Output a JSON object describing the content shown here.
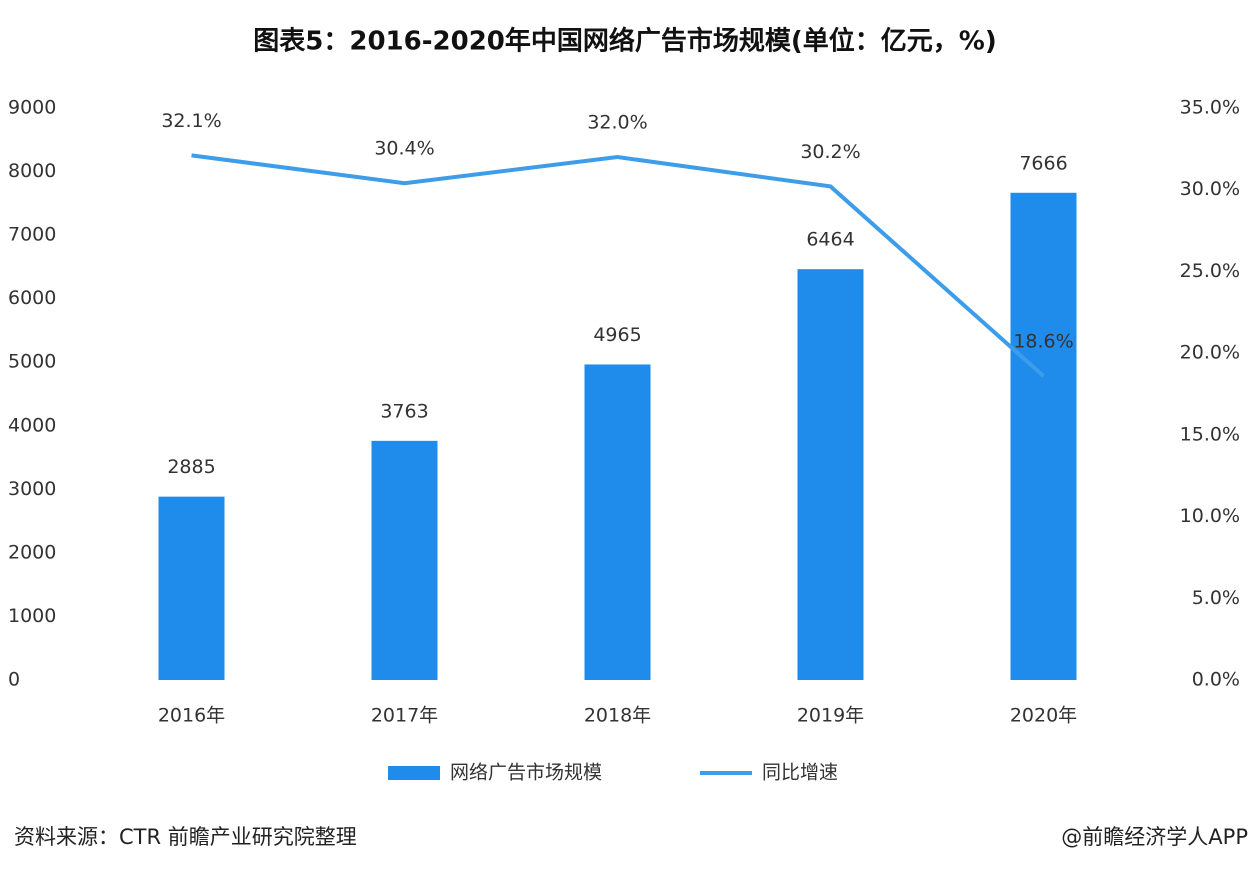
{
  "chart_data": {
    "type": "bar",
    "title": "图表5：2016-2020年中国网络广告市场规模(单位：亿元，%)",
    "categories": [
      "2016年",
      "2017年",
      "2018年",
      "2019年",
      "2020年"
    ],
    "series": [
      {
        "name": "网络广告市场规模",
        "type": "bar",
        "color": "#1f8ceb",
        "values": [
          2885,
          3763,
          4965,
          6464,
          7666
        ]
      },
      {
        "name": "同比增速",
        "type": "line",
        "axis": "y2",
        "color": "#3d9de8",
        "values": [
          32.1,
          30.4,
          32.0,
          30.2,
          18.6
        ],
        "value_labels": [
          "32.1%",
          "30.4%",
          "32.0%",
          "30.2%",
          "18.6%"
        ]
      }
    ],
    "ylim": [
      0,
      9000
    ],
    "yticks": [
      0,
      1000,
      2000,
      3000,
      4000,
      5000,
      6000,
      7000,
      8000,
      9000
    ],
    "y2lim": [
      0,
      35
    ],
    "y2ticks": [
      {
        "value": 0,
        "label": "0.0%"
      },
      {
        "value": 5,
        "label": "5.0%"
      },
      {
        "value": 10,
        "label": "10.0%"
      },
      {
        "value": 15,
        "label": "15.0%"
      },
      {
        "value": 20,
        "label": "20.0%"
      },
      {
        "value": 25,
        "label": "25.0%"
      },
      {
        "value": 30,
        "label": "30.0%"
      },
      {
        "value": 35,
        "label": "35.0%"
      }
    ],
    "legend": "bottom",
    "source": "资料来源：CTR 前瞻产业研究院整理",
    "credit": "@前瞻经济学人APP"
  }
}
